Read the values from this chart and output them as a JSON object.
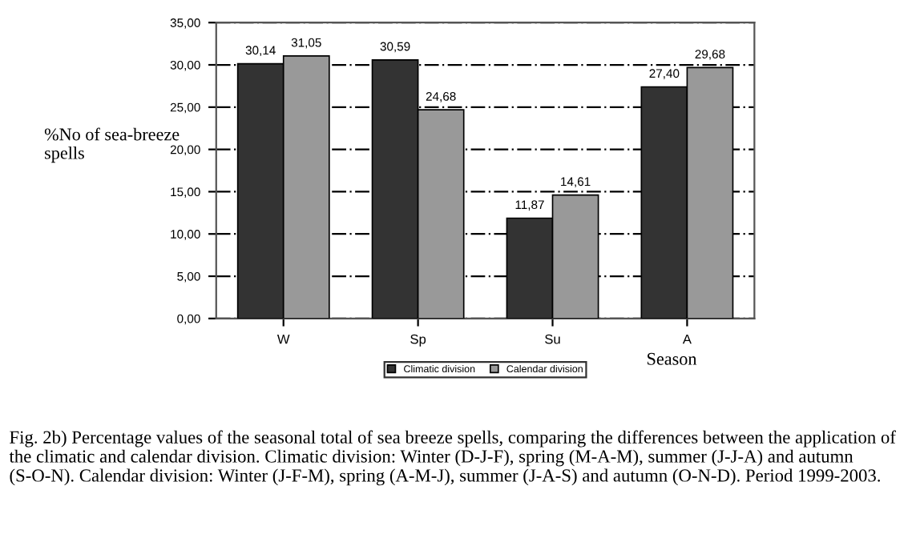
{
  "chart_data": {
    "type": "bar",
    "ylabel": "%No of sea-breeze\nspells",
    "xlabel": "Season",
    "categories": [
      "W",
      "Sp",
      "Su",
      "A"
    ],
    "series": [
      {
        "name": "Climatic division",
        "color": "#333333",
        "values": [
          30.14,
          30.59,
          11.87,
          27.4
        ],
        "value_labels": [
          "30,14",
          "30,59",
          "11,87",
          "27,40"
        ]
      },
      {
        "name": "Calendar division",
        "color": "#999999",
        "values": [
          31.05,
          24.68,
          14.61,
          29.68
        ],
        "value_labels": [
          "31,05",
          "24,68",
          "14,61",
          "29,68"
        ]
      }
    ],
    "ylim": [
      0,
      35
    ],
    "yticks": [
      {
        "value": 0,
        "label": "0,00"
      },
      {
        "value": 5,
        "label": "5,00"
      },
      {
        "value": 10,
        "label": "10,00"
      },
      {
        "value": 15,
        "label": "15,00"
      },
      {
        "value": 20,
        "label": "20,00"
      },
      {
        "value": 25,
        "label": "25,00"
      },
      {
        "value": 30,
        "label": "30,00"
      },
      {
        "value": 35,
        "label": "35,00"
      }
    ],
    "grid": "y",
    "legend": "bottom",
    "annotations": [
      "Fig. 2b) Percentage values of the seasonal total of sea breeze spells, comparing the differences between the application of the climatic and calendar division. Climatic division: Winter (D-J-F), spring (M-A-M), summer (J-J-A) and autumn (S-O-N). Calendar division: Winter (J-F-M), spring (A-M-J), summer (J-A-S) and autumn (O-N-D). Period 1999-2003."
    ]
  }
}
